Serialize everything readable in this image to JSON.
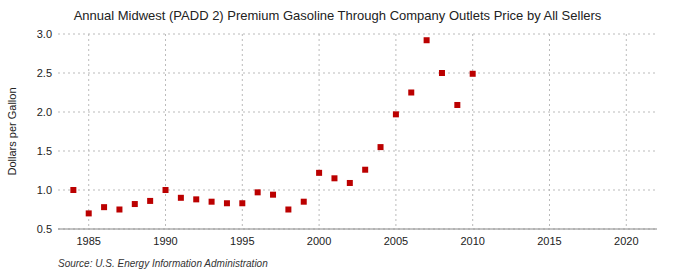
{
  "chart_data": {
    "type": "scatter",
    "title": "Annual Midwest (PADD 2) Premium Gasoline Through Company Outlets Price by All Sellers",
    "ylabel": "Dollars per Gallon",
    "annotation": "Source: U.S. Energy Information Administration",
    "x": [
      1984,
      1985,
      1986,
      1987,
      1988,
      1989,
      1990,
      1991,
      1992,
      1993,
      1994,
      1995,
      1996,
      1997,
      1998,
      1999,
      2000,
      2001,
      2002,
      2003,
      2004,
      2005,
      2006,
      2007,
      2008,
      2009,
      2010
    ],
    "values": [
      1.0,
      0.7,
      0.78,
      0.75,
      0.82,
      0.86,
      1.0,
      0.9,
      0.88,
      0.85,
      0.83,
      0.83,
      0.97,
      0.94,
      0.75,
      0.85,
      1.22,
      1.15,
      1.09,
      1.26,
      1.55,
      1.97,
      2.25,
      2.92,
      2.5,
      2.09,
      2.49
    ],
    "color": "#bb0000",
    "marker": "square",
    "xlim": [
      1983,
      2022
    ],
    "ylim": [
      0.5,
      3.0
    ],
    "xticks": [
      1985,
      1990,
      1995,
      2000,
      2005,
      2010,
      2015,
      2020
    ],
    "yticks": [
      0.5,
      {
        "value": 1.0,
        "label": "1.0"
      },
      1.5,
      {
        "value": 2.0,
        "label": "2.0"
      },
      2.5,
      {
        "value": 3.0,
        "label": "3.0"
      }
    ],
    "grid": true
  }
}
